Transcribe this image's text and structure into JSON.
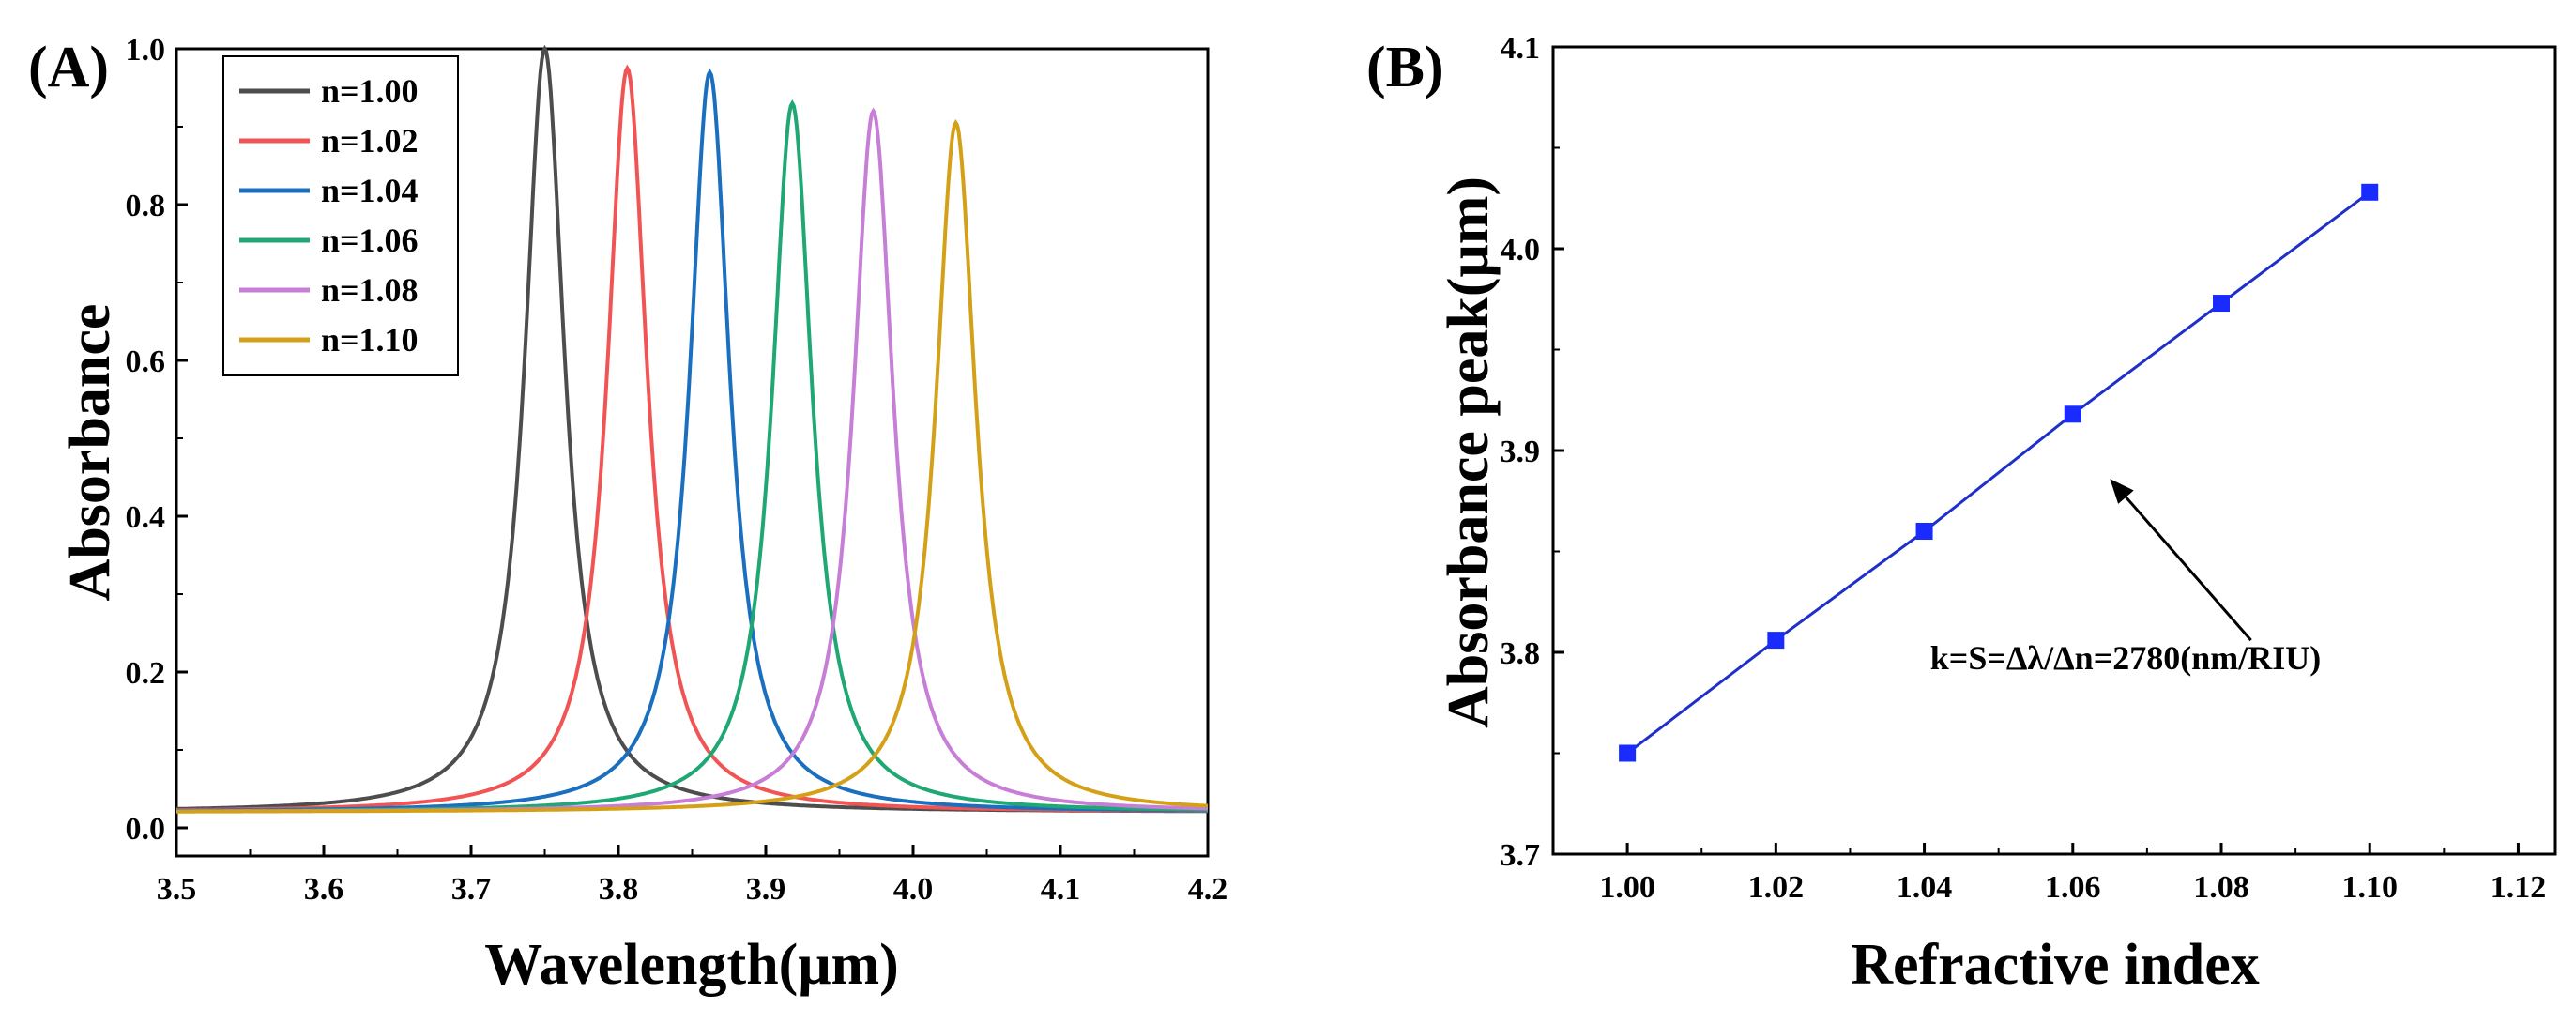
{
  "chart_data": [
    {
      "panel_label": "(A)",
      "type": "line",
      "xlabel": "Wavelength(μm)",
      "ylabel": "Absorbance",
      "xlim": [
        3.5,
        4.2
      ],
      "ylim": [
        -0.02,
        1.0
      ],
      "x_ticks": [
        "3.5",
        "3.6",
        "3.7",
        "3.8",
        "3.9",
        "4.0",
        "4.1",
        "4.2"
      ],
      "y_ticks": [
        "0.0",
        "0.2",
        "0.4",
        "0.6",
        "0.8",
        "1.0"
      ],
      "legend_position": "top-left",
      "series": [
        {
          "name": "n=1.00",
          "color": "#4d4d4d",
          "peak_x": 3.75,
          "peak_y": 1.0,
          "half_width": 0.0165,
          "baseline": 0.02
        },
        {
          "name": "n=1.02",
          "color": "#f05454",
          "peak_x": 3.806,
          "peak_y": 0.975,
          "half_width": 0.0165,
          "baseline": 0.02
        },
        {
          "name": "n=1.04",
          "color": "#1a6fbf",
          "peak_x": 3.862,
          "peak_y": 0.97,
          "half_width": 0.0165,
          "baseline": 0.02
        },
        {
          "name": "n=1.06",
          "color": "#1fa774",
          "peak_x": 3.918,
          "peak_y": 0.93,
          "half_width": 0.0165,
          "baseline": 0.02
        },
        {
          "name": "n=1.08",
          "color": "#c77ed6",
          "peak_x": 3.973,
          "peak_y": 0.92,
          "half_width": 0.0165,
          "baseline": 0.02
        },
        {
          "name": "n=1.10",
          "color": "#d4a017",
          "peak_x": 4.029,
          "peak_y": 0.905,
          "half_width": 0.0165,
          "baseline": 0.02
        }
      ]
    },
    {
      "panel_label": "(B)",
      "type": "line",
      "xlabel": "Refractive index",
      "ylabel": "Absorbance  peak(μm)",
      "xlim": [
        0.99,
        1.125
      ],
      "ylim": [
        3.7,
        4.1
      ],
      "x_ticks": [
        "1.00",
        "1.02",
        "1.04",
        "1.06",
        "1.08",
        "1.10",
        "1.12"
      ],
      "y_ticks": [
        "3.7",
        "3.8",
        "3.9",
        "4.0",
        "4.1"
      ],
      "series": [
        {
          "name": "Absorbance peak",
          "color": "#1f2fc9",
          "x": [
            1.0,
            1.02,
            1.04,
            1.06,
            1.08,
            1.1
          ],
          "y": [
            3.75,
            3.806,
            3.86,
            3.918,
            3.973,
            4.028
          ]
        }
      ],
      "annotation": {
        "text": "k=S=Δλ/Δn=2780(nm/RIU)",
        "arrow_target": [
          1.065,
          3.886
        ],
        "arrow_tail": [
          1.084,
          3.806
        ]
      }
    }
  ]
}
